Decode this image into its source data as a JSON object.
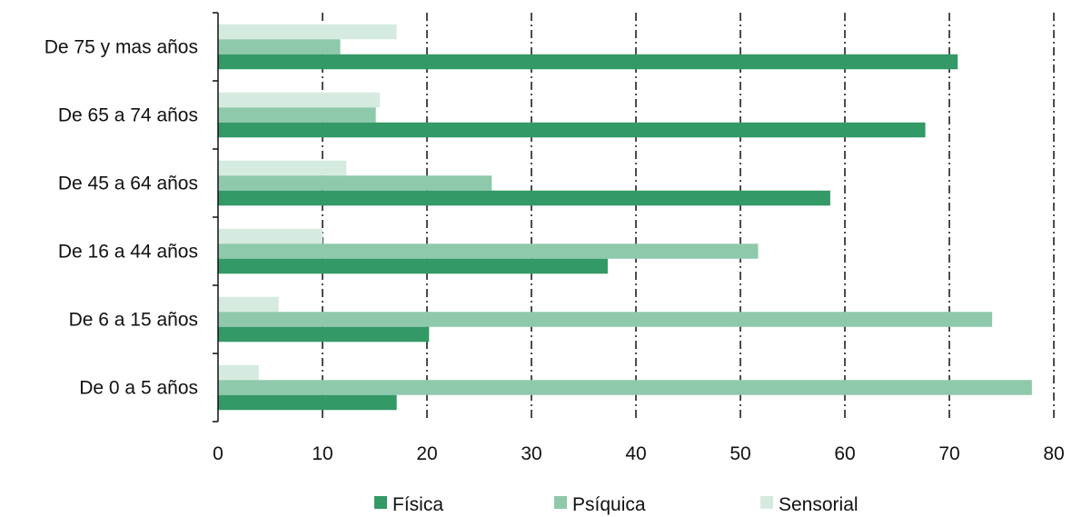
{
  "chart_data": {
    "type": "bar",
    "orientation": "horizontal",
    "categories": [
      "De 75 y mas años",
      "De 65 a 74 años",
      "De 45 a 64 años",
      "De 16 a 44 años",
      "De 6 a 15 años",
      "De 0 a 5 años"
    ],
    "series": [
      {
        "name": "Física",
        "color": "#339966",
        "values": [
          70.8,
          67.7,
          58.6,
          37.3,
          20.2,
          17.1
        ]
      },
      {
        "name": "Psíquica",
        "color": "#8fc9ac",
        "values": [
          11.7,
          15.1,
          26.2,
          51.7,
          74.1,
          77.9
        ]
      },
      {
        "name": "Sensorial",
        "color": "#d6ebe0",
        "values": [
          17.1,
          15.5,
          12.3,
          10.0,
          5.8,
          3.9
        ]
      }
    ],
    "xlim": [
      0,
      80
    ],
    "xticks": [
      0,
      10,
      20,
      30,
      40,
      50,
      60,
      70,
      80
    ],
    "title": "",
    "xlabel": "",
    "ylabel": "",
    "grid": "vertical dashed",
    "legend_position": "bottom"
  }
}
